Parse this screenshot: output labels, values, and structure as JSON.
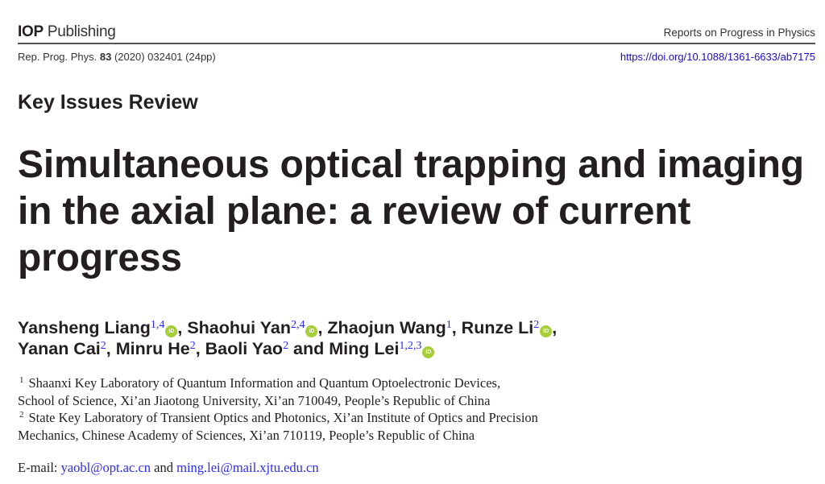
{
  "header": {
    "brand_bold": "IOP",
    "brand_rest": " Publishing",
    "journal": "Reports on Progress in Physics",
    "citation_prefix": "Rep. Prog. Phys. ",
    "citation_volume": "83",
    "citation_suffix": " (2020) 032401 (24pp)",
    "doi": "https://doi.org/10.1088/1361-6633/ab7175"
  },
  "section": "Key Issues Review",
  "title_lines": [
    "Simultaneous optical trapping and imaging",
    "in the axial plane: a review of current",
    "progress"
  ],
  "authors": [
    {
      "name": "Yansheng Liang",
      "sup": "1,4",
      "orcid": true,
      "sep": ", "
    },
    {
      "name": "Shaohui Yan",
      "sup": "2,4",
      "orcid": true,
      "sep": ", "
    },
    {
      "name": "Zhaojun Wang",
      "sup": "1",
      "orcid": false,
      "sep": ", "
    },
    {
      "name": "Runze Li",
      "sup": "2",
      "orcid": true,
      "sep": ","
    },
    {
      "name": "Yanan Cai",
      "sup": "2",
      "orcid": false,
      "sep": ", "
    },
    {
      "name": "Minru He",
      "sup": "2",
      "orcid": false,
      "sep": ", "
    },
    {
      "name": "Baoli Yao",
      "sup": "2",
      "orcid": false,
      "sep": " and "
    },
    {
      "name": "Ming Lei",
      "sup": "1,2,3",
      "orcid": true,
      "sep": ""
    }
  ],
  "orcid_label": "iD",
  "affiliations": [
    {
      "num": "1",
      "lines": [
        "Shaanxi Key Laboratory of Quantum Information and Quantum Optoelectronic Devices,",
        "School of Science, Xi’an Jiaotong University, Xi’an 710049, People’s Republic of China"
      ]
    },
    {
      "num": "2",
      "lines": [
        "State Key Laboratory of Transient Optics and Photonics, Xi’an Institute of Optics and Precision",
        "Mechanics, Chinese Academy of Sciences, Xi’an 710119, People’s Republic of China"
      ]
    }
  ],
  "email": {
    "label": "E-mail: ",
    "address1": "yaobl@opt.ac.cn",
    "joiner": " and ",
    "address2": "ming.lei@mail.xjtu.edu.cn"
  },
  "colors": {
    "link": "#2a2aff",
    "orcid": "#a6ce39",
    "text": "#231f20"
  }
}
